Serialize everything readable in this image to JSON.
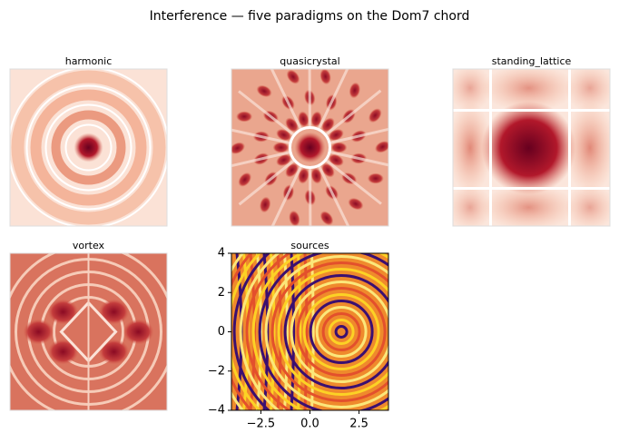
{
  "title": "Interference — five paradigms on the Dom7 chord",
  "chart_data": [
    {
      "type": "heatmap",
      "title": "harmonic"
    },
    {
      "type": "heatmap",
      "title": "quasicrystal"
    },
    {
      "type": "heatmap",
      "title": "standing_lattice"
    },
    {
      "type": "heatmap",
      "title": "vortex"
    },
    {
      "type": "heatmap",
      "title": "sources",
      "xlim": [
        -4,
        4
      ],
      "ylim": [
        -4,
        4
      ],
      "xticks": [
        {
          "value": -2.5,
          "label": "−2.5"
        },
        {
          "value": 0,
          "label": "0.0"
        },
        {
          "value": 2.5,
          "label": "2.5"
        }
      ],
      "yticks": [
        {
          "value": -4,
          "label": "−4"
        },
        {
          "value": -2,
          "label": "−2"
        },
        0,
        2,
        4
      ]
    }
  ]
}
